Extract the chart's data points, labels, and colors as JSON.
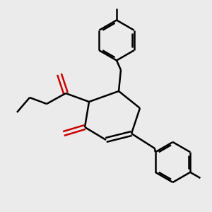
{
  "bg_color": "#ebebeb",
  "line_color": "#000000",
  "red_color": "#cc0000",
  "line_width": 1.8,
  "figsize": [
    3.0,
    3.0
  ],
  "dpi": 100,
  "xlim": [
    0,
    10
  ],
  "ylim": [
    0,
    10
  ]
}
